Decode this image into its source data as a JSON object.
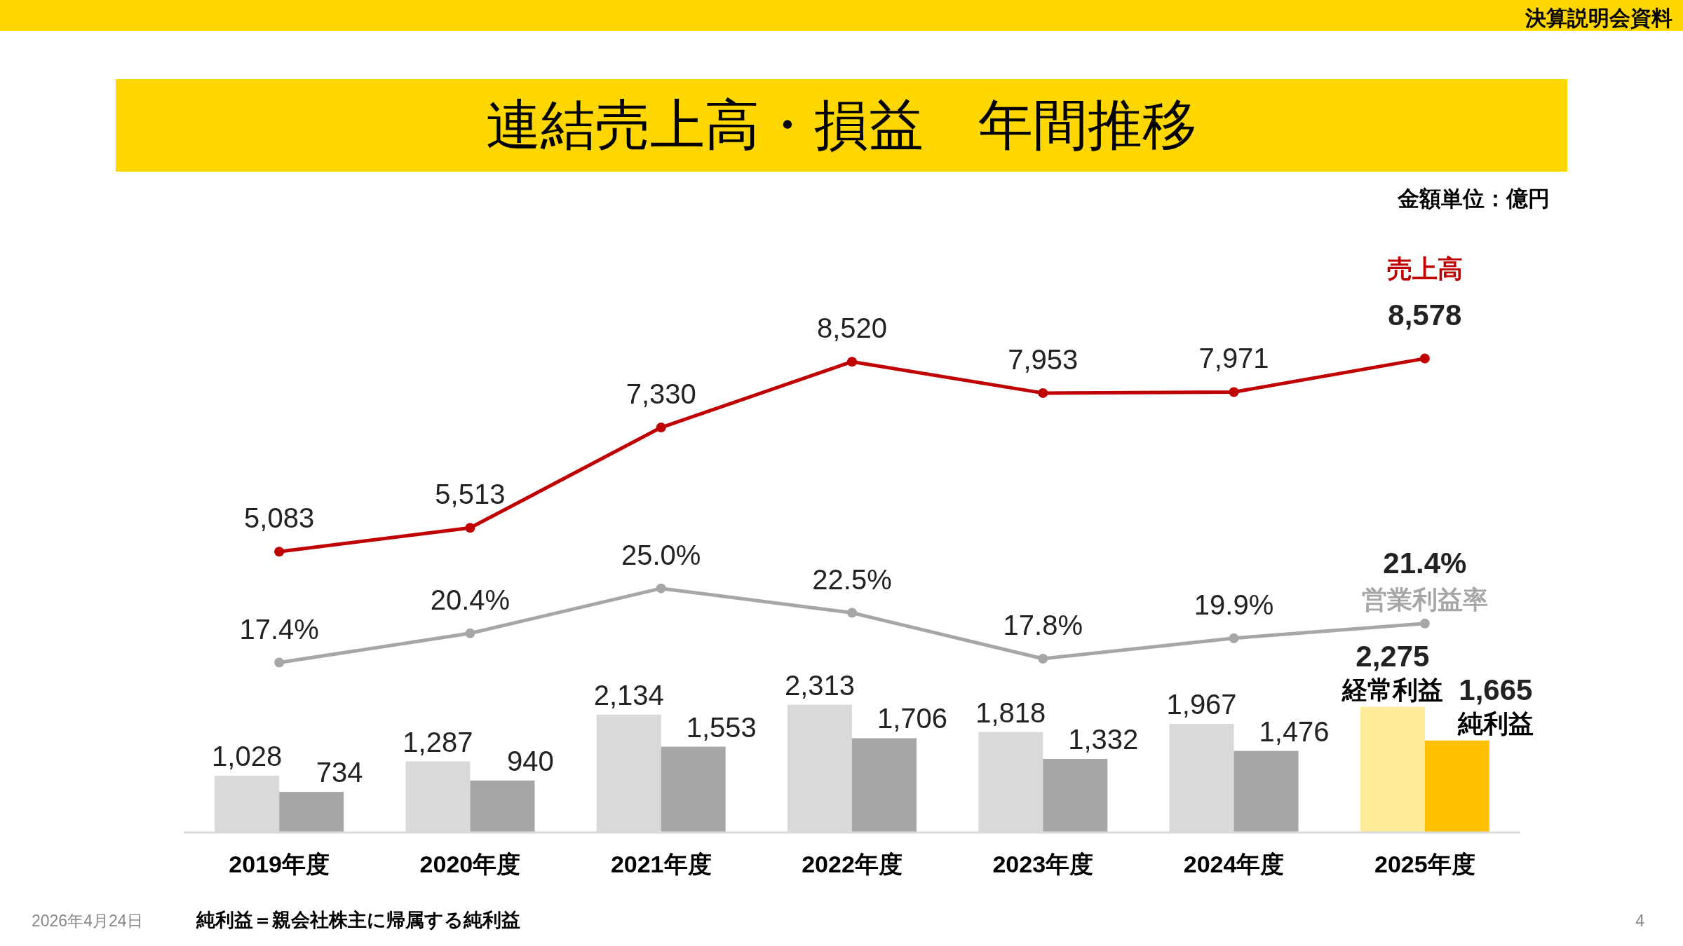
{
  "chart_data": {
    "type": "bar",
    "title": "連結売上高・損益　年間推移",
    "categories": [
      "2019年度",
      "2020年度",
      "2021年度",
      "2022年度",
      "2023年度",
      "2024年度",
      "2025年度"
    ],
    "series": [
      {
        "name": "経常利益",
        "values": [
          1028,
          1287,
          2134,
          2313,
          1818,
          1967,
          2275
        ],
        "colors": [
          "#d9d9d9",
          "#d9d9d9",
          "#d9d9d9",
          "#d9d9d9",
          "#d9d9d9",
          "#d9d9d9",
          "#ffeb99"
        ],
        "value_labels": [
          "1,028",
          "1,287",
          "2,134",
          "2,313",
          "1,818",
          "1,967",
          "2,275"
        ]
      },
      {
        "name": "純利益",
        "values": [
          734,
          940,
          1553,
          1706,
          1332,
          1476,
          1665
        ],
        "colors": [
          "#a6a6a6",
          "#a6a6a6",
          "#a6a6a6",
          "#a6a6a6",
          "#a6a6a6",
          "#a6a6a6",
          "#ffc000"
        ],
        "value_labels": [
          "734",
          "940",
          "1,553",
          "1,706",
          "1,332",
          "1,476",
          "1,665"
        ]
      },
      {
        "name": "売上高",
        "type": "line",
        "color": "#c00000",
        "values": [
          5083,
          5513,
          7330,
          8520,
          7953,
          7971,
          8578
        ],
        "value_labels": [
          "5,083",
          "5,513",
          "7,330",
          "8,520",
          "7,953",
          "7,971",
          "8,578"
        ]
      },
      {
        "name": "営業利益率",
        "type": "line",
        "axis": "y2",
        "color": "#a6a6a6",
        "values": [
          17.4,
          20.4,
          25.0,
          22.5,
          17.8,
          19.9,
          21.4
        ],
        "value_labels": [
          "17.4%",
          "20.4%",
          "25.0%",
          "22.5%",
          "17.8%",
          "19.9%",
          "21.4%"
        ]
      }
    ],
    "tick_labels": "x",
    "grid": false,
    "marker": "circle",
    "line_style": "solid",
    "annotations": [
      "決算説明会資料",
      "金額単位：億円",
      "2026年4月24日",
      "純利益＝親会社株主に帰属する純利益",
      "4"
    ]
  }
}
